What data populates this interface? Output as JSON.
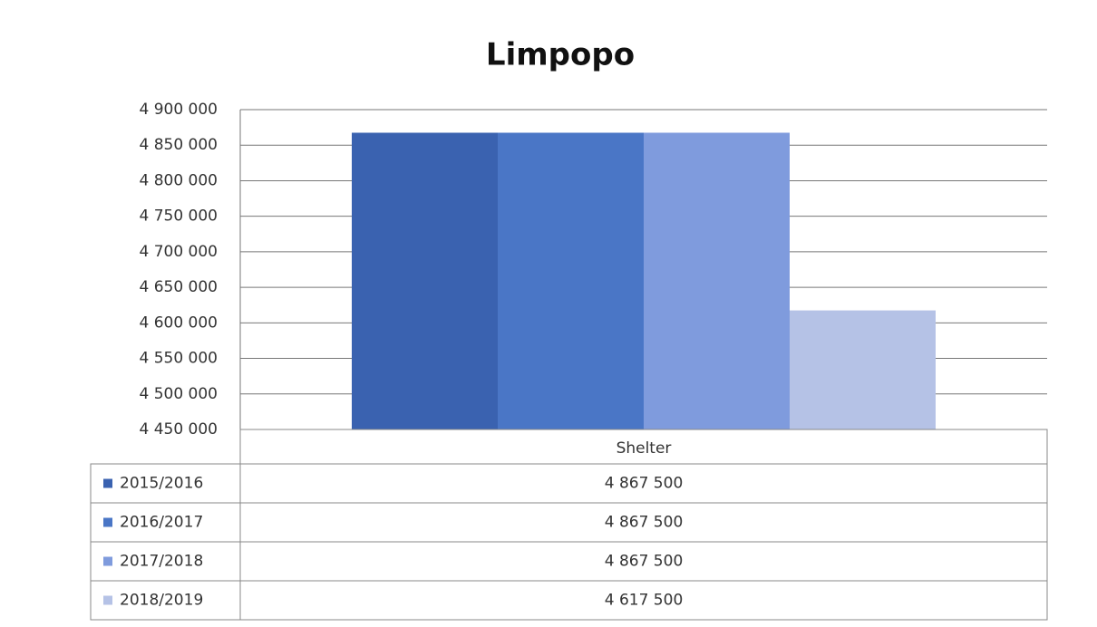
{
  "chart_data": {
    "type": "bar",
    "title": "Limpopo",
    "categories": [
      "Shelter"
    ],
    "series": [
      {
        "name": "2015/2016",
        "color": "#3a62b0",
        "values": [
          4867500
        ],
        "value_labels": [
          "4 867 500"
        ]
      },
      {
        "name": "2016/2017",
        "color": "#4a76c6",
        "values": [
          4867500
        ],
        "value_labels": [
          "4 867 500"
        ]
      },
      {
        "name": "2017/2018",
        "color": "#7f9bdd",
        "values": [
          4867500
        ],
        "value_labels": [
          "4 867 500"
        ]
      },
      {
        "name": "2018/2019",
        "color": "#b5c2e6",
        "values": [
          4617500
        ],
        "value_labels": [
          "4 617 500"
        ]
      }
    ],
    "ylim": [
      4450000,
      4900000
    ],
    "yticks": [
      {
        "value": 4450000,
        "label": "4 450 000"
      },
      {
        "value": 4500000,
        "label": "4 500 000"
      },
      {
        "value": 4550000,
        "label": "4 550 000"
      },
      {
        "value": 4600000,
        "label": "4 600 000"
      },
      {
        "value": 4650000,
        "label": "4 650 000"
      },
      {
        "value": 4700000,
        "label": "4 700 000"
      },
      {
        "value": 4750000,
        "label": "4 750 000"
      },
      {
        "value": 4800000,
        "label": "4 800 000"
      },
      {
        "value": 4850000,
        "label": "4 850 000"
      },
      {
        "value": 4900000,
        "label": "4 900 000"
      }
    ],
    "grid": true
  }
}
